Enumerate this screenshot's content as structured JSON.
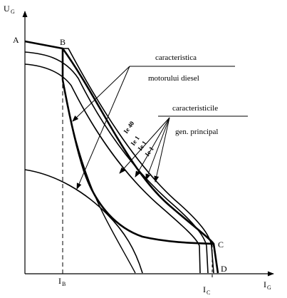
{
  "axes": {
    "y_main": "U",
    "y_sub": "G",
    "x_main": "I",
    "x_sub": "G"
  },
  "points": {
    "A": "A",
    "B": "B",
    "C": "C",
    "D": "D"
  },
  "x_ticks": [
    {
      "main": "I",
      "sub": "B"
    },
    {
      "main": "I",
      "sub": "C"
    }
  ],
  "annotations": {
    "diesel_line1": "caracteristica",
    "diesel_line2": "motorului diesel",
    "gen_line1": "caracteristicile",
    "gen_line2": "gen. principal"
  },
  "curve_labels": [
    "Ie 40",
    "Ie 1",
    "Ie 1",
    "Ie 1"
  ],
  "colors": {
    "stroke": "#000000",
    "background": "#ffffff"
  }
}
